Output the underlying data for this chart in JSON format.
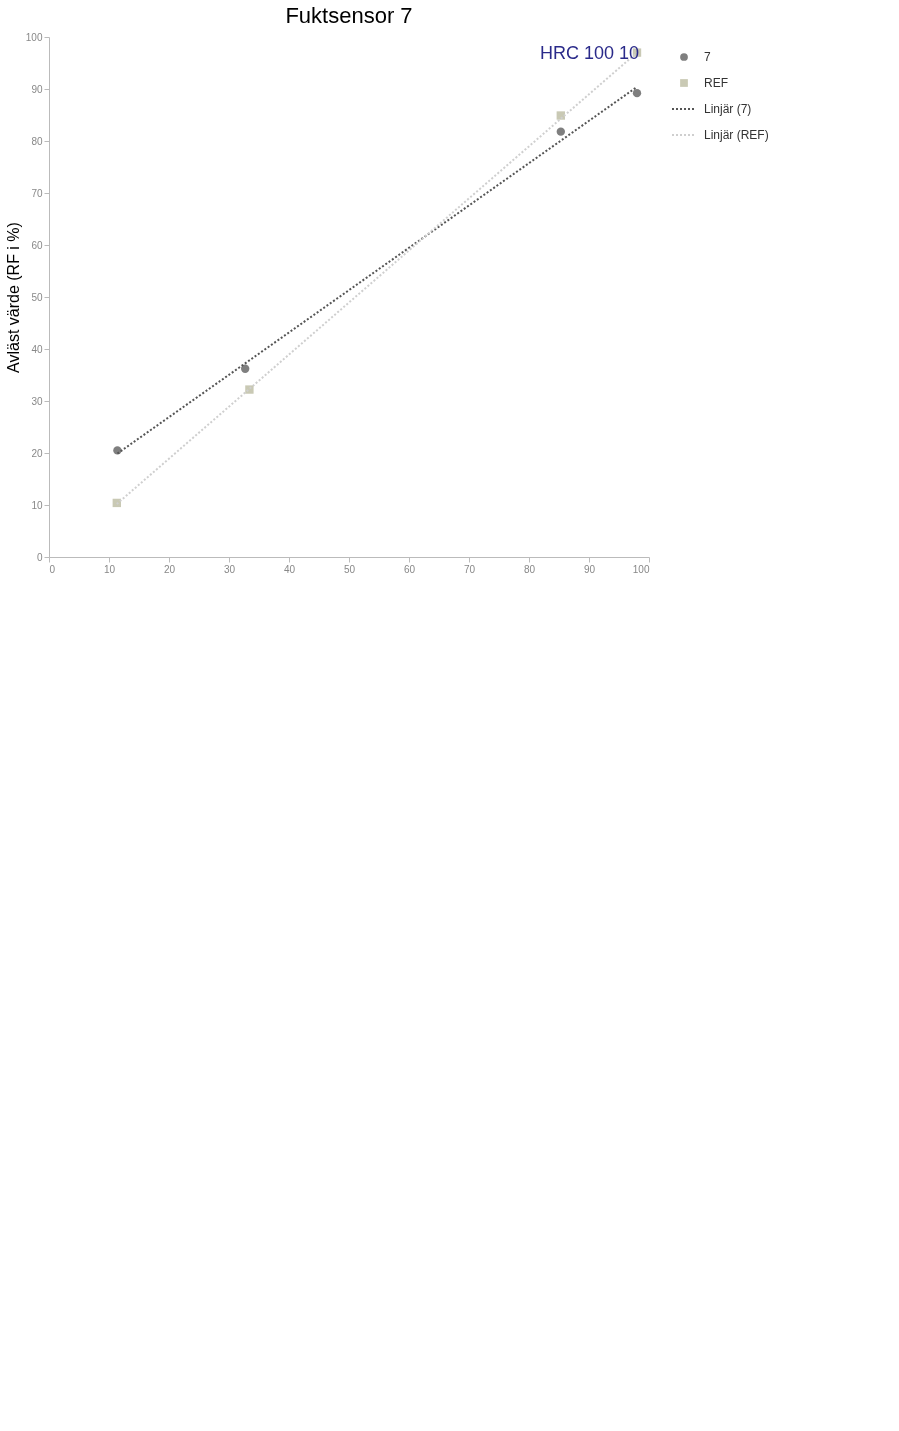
{
  "chart_data": {
    "type": "scatter",
    "title": "Fuktsensor 7",
    "ylabel": "Avläst värde (RF i %)",
    "xlim": [
      0,
      100
    ],
    "xticks": [
      0,
      10,
      20,
      30,
      40,
      50,
      60,
      70,
      80,
      90,
      100
    ],
    "ylim": [
      0,
      100
    ],
    "yticks": [
      0,
      10,
      20,
      30,
      40,
      50,
      60,
      70,
      80,
      90,
      100
    ],
    "grid": false,
    "legend": "right",
    "annotations": [
      "HRC 100 10"
    ],
    "series": [
      {
        "name": "7",
        "marker": "circle",
        "color": "#7f7f7f",
        "x": [
          11.4,
          32.7,
          85.3,
          98
        ],
        "values": [
          20.5,
          36.2,
          81.8,
          89.2
        ]
      },
      {
        "name": "REF",
        "marker": "square",
        "color": "#c9c9b4",
        "x": [
          11.3,
          33.4,
          85.3,
          98
        ],
        "values": [
          10.4,
          32.2,
          84.9,
          97
        ]
      },
      {
        "name": "Linjär (7)",
        "type": "line",
        "line_style": "dotted",
        "color": "#555555",
        "x": [
          11.4,
          98
        ],
        "values": [
          19.9,
          90.4
        ]
      },
      {
        "name": "Linjär (REF)",
        "type": "line",
        "line_style": "dotted",
        "color": "#cfcfcf",
        "x": [
          11.3,
          98
        ],
        "values": [
          10.2,
          97
        ]
      }
    ]
  }
}
